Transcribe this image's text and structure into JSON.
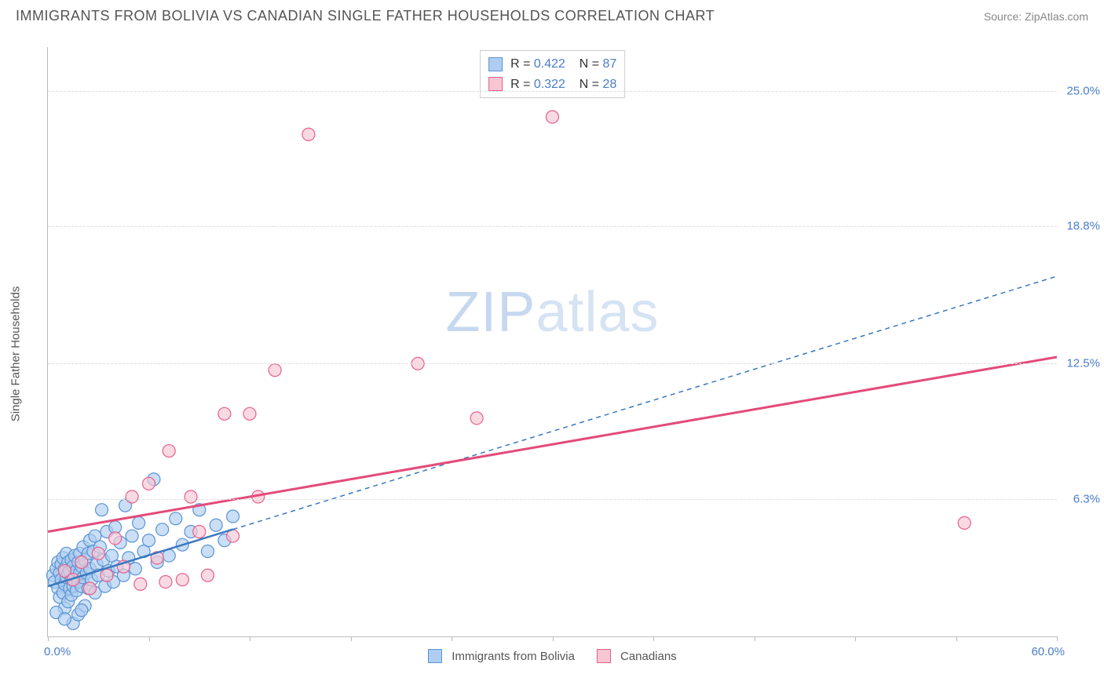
{
  "header": {
    "title": "IMMIGRANTS FROM BOLIVIA VS CANADIAN SINGLE FATHER HOUSEHOLDS CORRELATION CHART",
    "source_prefix": "Source: ",
    "source_name": "ZipAtlas.com"
  },
  "watermark": {
    "zip": "ZIP",
    "atlas": "atlas"
  },
  "axes": {
    "y_label": "Single Father Households",
    "x_min_label": "0.0%",
    "x_max_label": "60.0%",
    "xlim": [
      0,
      60
    ],
    "ylim": [
      0,
      27
    ],
    "y_ticks": [
      {
        "value": 6.3,
        "label": "6.3%"
      },
      {
        "value": 12.5,
        "label": "12.5%"
      },
      {
        "value": 18.8,
        "label": "18.8%"
      },
      {
        "value": 25.0,
        "label": "25.0%"
      }
    ],
    "x_ticks": [
      0,
      6,
      12,
      18,
      24,
      30,
      36,
      42,
      48,
      54,
      60
    ],
    "grid_color": "#dddddd",
    "axis_color": "#bbbbbb"
  },
  "series": {
    "blue": {
      "label": "Immigrants from Bolivia",
      "fill": "#aecdf0",
      "stroke": "#5a94d4",
      "line_color": "#3a78bf",
      "line_dash": "6,5",
      "R": "0.422",
      "N": "87",
      "trend": {
        "x1": 0,
        "y1": 2.3,
        "x2": 60,
        "y2": 16.5
      },
      "trend_solid_until_x": 11,
      "marker_radius": 8,
      "points": [
        [
          0.3,
          2.8
        ],
        [
          0.4,
          2.5
        ],
        [
          0.5,
          3.1
        ],
        [
          0.6,
          2.2
        ],
        [
          0.6,
          3.4
        ],
        [
          0.7,
          1.8
        ],
        [
          0.7,
          2.9
        ],
        [
          0.8,
          2.6
        ],
        [
          0.8,
          3.3
        ],
        [
          0.9,
          2.0
        ],
        [
          0.9,
          3.6
        ],
        [
          1.0,
          2.4
        ],
        [
          1.0,
          1.3
        ],
        [
          1.0,
          3.1
        ],
        [
          1.1,
          2.7
        ],
        [
          1.1,
          3.8
        ],
        [
          1.2,
          1.6
        ],
        [
          1.2,
          2.9
        ],
        [
          1.2,
          3.4
        ],
        [
          1.3,
          2.2
        ],
        [
          1.3,
          3.0
        ],
        [
          1.4,
          1.9
        ],
        [
          1.4,
          2.6
        ],
        [
          1.4,
          3.5
        ],
        [
          1.5,
          2.3
        ],
        [
          1.5,
          3.2
        ],
        [
          1.5,
          0.6
        ],
        [
          1.6,
          2.8
        ],
        [
          1.6,
          3.7
        ],
        [
          1.7,
          2.1
        ],
        [
          1.7,
          3.0
        ],
        [
          1.8,
          2.5
        ],
        [
          1.8,
          3.4
        ],
        [
          1.8,
          1.0
        ],
        [
          1.9,
          2.9
        ],
        [
          1.9,
          3.8
        ],
        [
          2.0,
          2.3
        ],
        [
          2.0,
          3.2
        ],
        [
          2.1,
          4.1
        ],
        [
          2.1,
          2.7
        ],
        [
          2.2,
          3.5
        ],
        [
          2.2,
          1.4
        ],
        [
          2.3,
          2.9
        ],
        [
          2.4,
          3.8
        ],
        [
          2.4,
          2.2
        ],
        [
          2.5,
          4.4
        ],
        [
          2.5,
          3.1
        ],
        [
          2.6,
          2.6
        ],
        [
          2.7,
          3.9
        ],
        [
          2.8,
          2.0
        ],
        [
          2.8,
          4.6
        ],
        [
          2.9,
          3.3
        ],
        [
          3.0,
          2.8
        ],
        [
          3.1,
          4.1
        ],
        [
          3.2,
          5.8
        ],
        [
          3.3,
          3.5
        ],
        [
          3.4,
          2.3
        ],
        [
          3.5,
          4.8
        ],
        [
          3.6,
          3.0
        ],
        [
          3.8,
          3.7
        ],
        [
          3.9,
          2.5
        ],
        [
          4.0,
          5.0
        ],
        [
          4.1,
          3.2
        ],
        [
          4.3,
          4.3
        ],
        [
          4.5,
          2.8
        ],
        [
          4.6,
          6.0
        ],
        [
          4.8,
          3.6
        ],
        [
          5.0,
          4.6
        ],
        [
          5.2,
          3.1
        ],
        [
          5.4,
          5.2
        ],
        [
          5.7,
          3.9
        ],
        [
          6.0,
          4.4
        ],
        [
          6.3,
          7.2
        ],
        [
          6.5,
          3.4
        ],
        [
          6.8,
          4.9
        ],
        [
          7.2,
          3.7
        ],
        [
          7.6,
          5.4
        ],
        [
          8.0,
          4.2
        ],
        [
          8.5,
          4.8
        ],
        [
          9.0,
          5.8
        ],
        [
          9.5,
          3.9
        ],
        [
          10.0,
          5.1
        ],
        [
          10.5,
          4.4
        ],
        [
          11.0,
          5.5
        ],
        [
          0.5,
          1.1
        ],
        [
          1.0,
          0.8
        ],
        [
          2.0,
          1.2
        ]
      ]
    },
    "pink": {
      "label": "Canadians",
      "fill": "#f6c6d2",
      "stroke": "#e95f8b",
      "line_color": "#e34b7a",
      "line_dash": "none",
      "R": "0.322",
      "N": "28",
      "trend": {
        "x1": 0,
        "y1": 4.8,
        "x2": 60,
        "y2": 12.8
      },
      "marker_radius": 8,
      "points": [
        [
          1.0,
          3.0
        ],
        [
          1.5,
          2.6
        ],
        [
          2.0,
          3.4
        ],
        [
          2.5,
          2.2
        ],
        [
          3.0,
          3.8
        ],
        [
          3.5,
          2.8
        ],
        [
          4.0,
          4.5
        ],
        [
          4.5,
          3.2
        ],
        [
          5.0,
          6.4
        ],
        [
          5.5,
          2.4
        ],
        [
          6.0,
          7.0
        ],
        [
          6.5,
          3.6
        ],
        [
          7.2,
          8.5
        ],
        [
          8.0,
          2.6
        ],
        [
          8.5,
          6.4
        ],
        [
          9.0,
          4.8
        ],
        [
          9.5,
          2.8
        ],
        [
          10.5,
          10.2
        ],
        [
          11.0,
          4.6
        ],
        [
          12.0,
          10.2
        ],
        [
          12.5,
          6.4
        ],
        [
          13.5,
          12.2
        ],
        [
          15.5,
          23.0
        ],
        [
          22.0,
          12.5
        ],
        [
          25.5,
          10.0
        ],
        [
          30.0,
          23.8
        ],
        [
          54.5,
          5.2
        ],
        [
          7.0,
          2.5
        ]
      ]
    }
  },
  "legend_bottom": {
    "blue_label": "Immigrants from Bolivia",
    "pink_label": "Canadians"
  },
  "stats_labels": {
    "R": "R",
    "N": "N",
    "eq": "="
  }
}
